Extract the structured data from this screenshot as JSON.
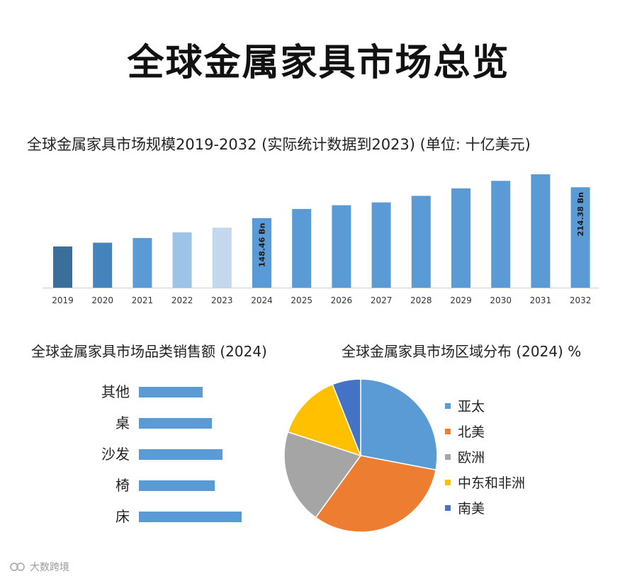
{
  "page_title": "全球金属家具市场总览",
  "watermark": "大数跨境",
  "chart_data": [
    {
      "type": "bar",
      "title": "全球金属家具市场规模2019-2032 (实际统计数据到2023) (单位: 十亿美元)",
      "categories": [
        "2019",
        "2020",
        "2021",
        "2022",
        "2023",
        "2024",
        "2025",
        "2026",
        "2027",
        "2028",
        "2029",
        "2030",
        "2031",
        "2032"
      ],
      "values": [
        88,
        96,
        106,
        118,
        128,
        148.46,
        168,
        176,
        182,
        196,
        212,
        228,
        242,
        214.38
      ],
      "colors": [
        "#3a6f9c",
        "#4583bd",
        "#5b9bd5",
        "#9dc3e6",
        "#c3d8ef",
        "#5b9bd5",
        "#5b9bd5",
        "#5b9bd5",
        "#5b9bd5",
        "#5b9bd5",
        "#5b9bd5",
        "#5b9bd5",
        "#5b9bd5",
        "#5b9bd5"
      ],
      "data_labels": {
        "2024": "148.46 Bn",
        "2032": "214.38 Bn"
      },
      "ylim": [
        0,
        250
      ],
      "grid": false
    },
    {
      "type": "bar",
      "orientation": "horizontal",
      "title": "全球金属家具市场品类销售额 (2024)",
      "categories": [
        "其他",
        "桌",
        "沙发",
        "椅",
        "床"
      ],
      "values": [
        90,
        103,
        118,
        107,
        145
      ],
      "color": "#5b9bd5",
      "grid": false
    },
    {
      "type": "pie",
      "title": "全球金属家具市场区域分布 (2024) %",
      "labels": [
        "亚太",
        "北美",
        "欧洲",
        "中东和非洲",
        "南美"
      ],
      "values": [
        28,
        32,
        20,
        14,
        6
      ],
      "colors": [
        "#5b9bd5",
        "#ed7d31",
        "#a5a5a5",
        "#ffc000",
        "#4472c4"
      ],
      "legend": "right"
    }
  ]
}
